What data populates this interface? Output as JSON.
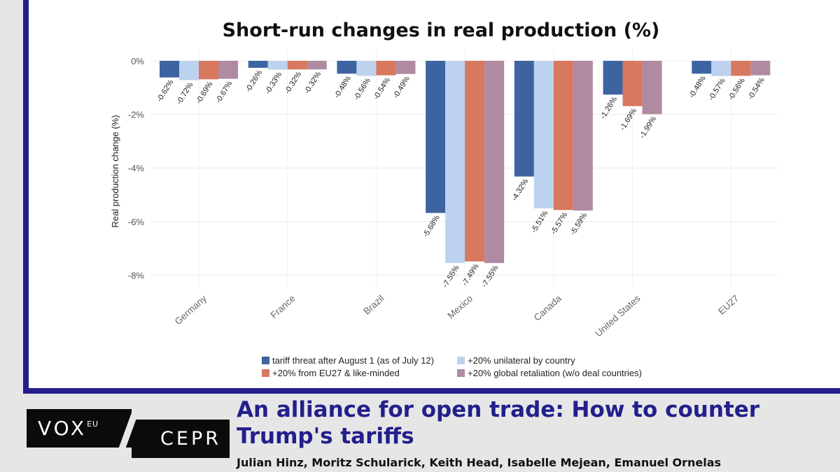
{
  "chart_data": {
    "type": "bar",
    "title": "Short-run changes in real production (%)",
    "ylabel": "Real production change (%)",
    "xlabel": "",
    "ylim": [
      -8.3,
      0.2
    ],
    "yticks": [
      0,
      -2,
      -4,
      -6,
      -8
    ],
    "ytick_labels": [
      "0%",
      "-2%",
      "-4%",
      "-6%",
      "-8%"
    ],
    "categories": [
      "Germany",
      "France",
      "Brazil",
      "Mexico",
      "Canada",
      "United States",
      "EU27"
    ],
    "series": [
      {
        "name": "tariff threat after August 1 (as of July 12)",
        "color": "#3d64a0",
        "values": [
          -0.62,
          -0.26,
          -0.48,
          -5.68,
          -4.32,
          -1.26,
          -0.48
        ],
        "labels": [
          "-0.62%",
          "-0.26%",
          "-0.48%",
          "-5.68%",
          "-4.32%",
          "-1.26%",
          "-0.48%"
        ]
      },
      {
        "name": "+20% unilateral by country",
        "color": "#bcd2ee",
        "values": [
          -0.72,
          -0.33,
          -0.56,
          -7.55,
          -5.51,
          null,
          -0.57
        ],
        "labels": [
          "-0.72%",
          "-0.33%",
          "-0.56%",
          "-7.55%",
          "-5.51%",
          "",
          "-0.57%"
        ]
      },
      {
        "name": "+20% from EU27 & like-minded",
        "color": "#d7785f",
        "values": [
          -0.69,
          -0.32,
          -0.54,
          -7.49,
          -5.57,
          -1.69,
          -0.56
        ],
        "labels": [
          "-0.69%",
          "-0.32%",
          "-0.54%",
          "-7.49%",
          "-5.57%",
          "-1.69%",
          "-0.56%"
        ]
      },
      {
        "name": "+20% global retaliation (w/o deal countries)",
        "color": "#b08aa0",
        "values": [
          -0.67,
          -0.32,
          -0.49,
          -7.55,
          -5.59,
          -1.99,
          -0.54
        ],
        "labels": [
          "-0.67%",
          "-0.32%",
          "-0.49%",
          "-7.55%",
          "-5.59%",
          "-1.99%",
          "-0.54%"
        ]
      }
    ],
    "grid": true,
    "legend_position": "bottom"
  },
  "branding": {
    "vox": "VOX",
    "vox_sup": "EU",
    "cepr": "CEPR"
  },
  "article": {
    "headline": "An alliance for open trade: How to counter Trump's tariffs",
    "authors": "Julian Hinz, Moritz Schularick, Keith Head, Isabelle Mejean, Emanuel Ornelas"
  },
  "colors": {
    "frame": "#231f8c",
    "headline": "#231f8c",
    "background": "#e6e6e6"
  }
}
